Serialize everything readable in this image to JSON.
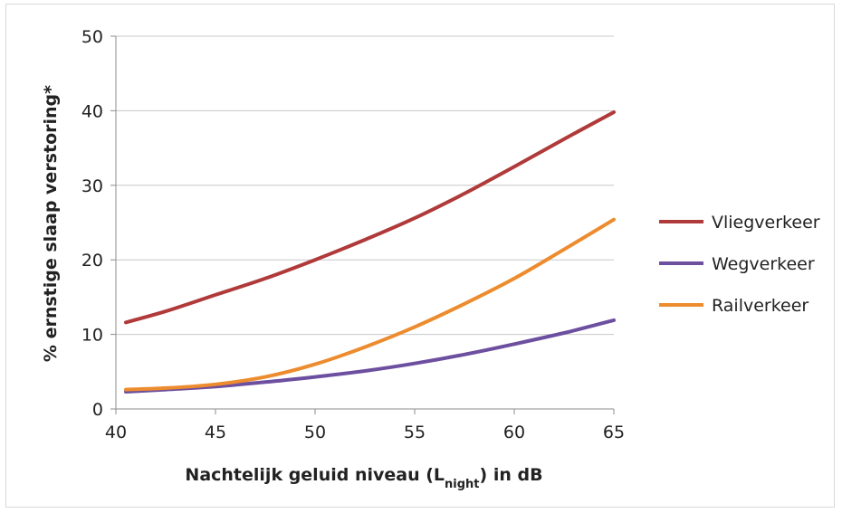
{
  "chart_data": {
    "type": "line",
    "xlabel": "Nachtelijk geluid niveau (L",
    "xlabel_sub": "night",
    "xlabel_tail": ") in dB",
    "ylabel": "% ernstige slaap verstoring*",
    "xlim": [
      40,
      65
    ],
    "ylim": [
      0,
      50
    ],
    "x_ticks": [
      40,
      45,
      50,
      55,
      60,
      65
    ],
    "y_ticks": [
      0,
      10,
      20,
      30,
      40,
      50
    ],
    "grid": "horizontal",
    "legend_position": "right",
    "x": [
      40.5,
      42.5,
      45,
      47.5,
      50,
      52.5,
      55,
      57.5,
      60,
      62.5,
      65
    ],
    "series": [
      {
        "name": "Vliegverkeer",
        "color": "#b03a3a",
        "values": [
          11.6,
          13.1,
          15.3,
          17.5,
          20.0,
          22.7,
          25.6,
          28.9,
          32.5,
          36.2,
          39.8
        ]
      },
      {
        "name": "Wegverkeer",
        "color": "#6d4fa0",
        "values": [
          2.3,
          2.6,
          3.0,
          3.6,
          4.3,
          5.1,
          6.1,
          7.3,
          8.7,
          10.2,
          11.9
        ]
      },
      {
        "name": "Railverkeer",
        "color": "#ec8c2e",
        "values": [
          2.6,
          2.8,
          3.3,
          4.3,
          6.0,
          8.3,
          11.0,
          14.1,
          17.5,
          21.4,
          25.4
        ]
      }
    ]
  }
}
